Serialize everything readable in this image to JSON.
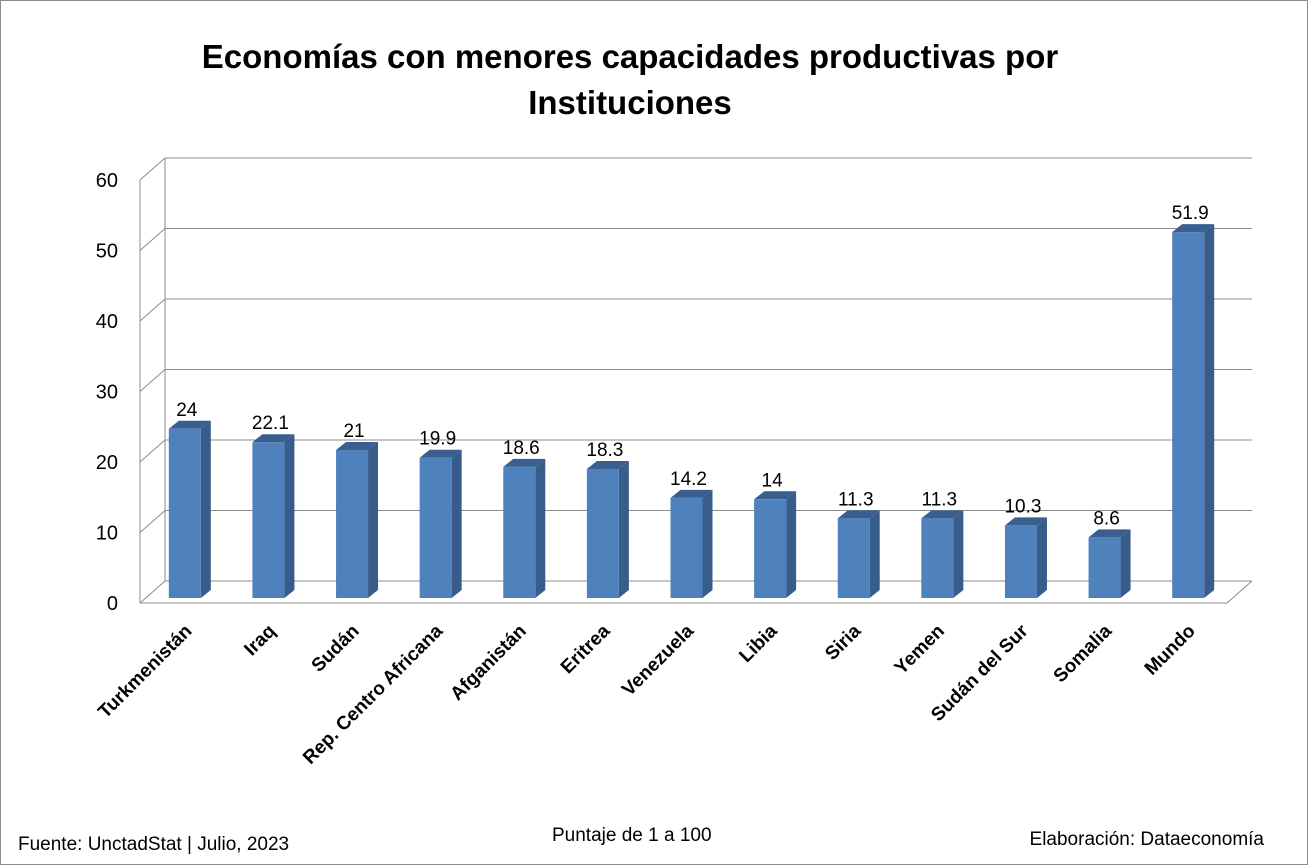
{
  "chart_data": {
    "type": "bar",
    "title": "Economías con menores capacidades productivas por Instituciones",
    "title_lines": [
      "Economías con menores capacidades productivas por",
      "Instituciones"
    ],
    "categories": [
      "Turkmenistán",
      "Iraq",
      "Sudán",
      "Rep. Centro Africana",
      "Afganistán",
      "Eritrea",
      "Venezuela",
      "Libia",
      "Siria",
      "Yemen",
      "Sudán del Sur",
      "Somalia",
      "Mundo"
    ],
    "values": [
      24,
      22.1,
      21,
      19.9,
      18.6,
      18.3,
      14.2,
      14,
      11.3,
      11.3,
      10.3,
      8.6,
      51.9
    ],
    "data_labels": [
      "24",
      "22.1",
      "21",
      "19.9",
      "18.6",
      "18.3",
      "14.2",
      "14",
      "11.3",
      "11.3",
      "10.3",
      "8.6",
      "51.9"
    ],
    "ylim": [
      0,
      60
    ],
    "yticks": [
      "0",
      "10",
      "20",
      "30",
      "40",
      "50",
      "60"
    ],
    "xlabel": "Puntaje de 1 a 100",
    "ylabel": "",
    "grid": true,
    "legend": "none",
    "bar_color": "#4f81bd",
    "bar_side_color": "#385d8a",
    "bar_top_color": "#3a5f8f"
  },
  "footer": {
    "source": "Fuente: UnctadStat | Julio,  2023",
    "unit": "Puntaje de 1 a 100",
    "credit": "Elaboración: Dataeconomía"
  }
}
